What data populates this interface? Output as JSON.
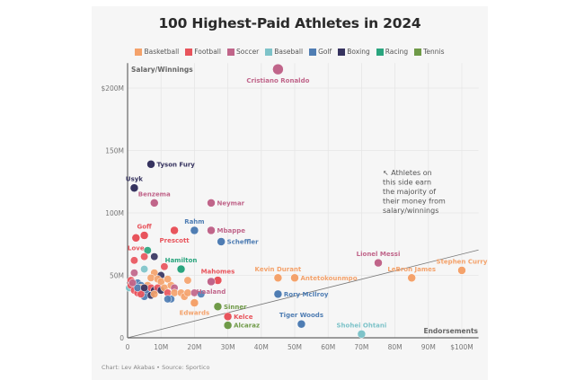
{
  "chart_data": {
    "type": "scatter",
    "title": "100 Highest-Paid Athletes in 2024",
    "xlabel": "Endorsements",
    "ylabel": "Salary/Winnings",
    "xlim": [
      0,
      105
    ],
    "ylim": [
      0,
      220
    ],
    "x_ticks": [
      {
        "value": 0,
        "label": "0"
      },
      {
        "value": 10,
        "label": "10M"
      },
      {
        "value": 20,
        "label": "20M"
      },
      {
        "value": 30,
        "label": "30M"
      },
      {
        "value": 40,
        "label": "40M"
      },
      {
        "value": 50,
        "label": "50M"
      },
      {
        "value": 60,
        "label": "60M"
      },
      {
        "value": 70,
        "label": "70M"
      },
      {
        "value": 80,
        "label": "80M"
      },
      {
        "value": 90,
        "label": "90M"
      },
      {
        "value": 100,
        "label": "$100M"
      }
    ],
    "y_ticks": [
      {
        "value": 0,
        "label": "0"
      },
      {
        "value": 50,
        "label": "50M"
      },
      {
        "value": 100,
        "label": "100M"
      },
      {
        "value": 150,
        "label": "150M"
      },
      {
        "value": 200,
        "label": "$200M"
      }
    ],
    "grid": true,
    "legend_position": "top-center",
    "categories": [
      {
        "name": "Basketball",
        "color": "#f4a26b"
      },
      {
        "name": "Football",
        "color": "#e8545c"
      },
      {
        "name": "Soccer",
        "color": "#c0658a"
      },
      {
        "name": "Baseball",
        "color": "#7ec3c9"
      },
      {
        "name": "Golf",
        "color": "#4f7db3"
      },
      {
        "name": "Boxing",
        "color": "#36335f"
      },
      {
        "name": "Racing",
        "color": "#2aa57e"
      },
      {
        "name": "Tennis",
        "color": "#6f9a48"
      }
    ],
    "diagonal_line": {
      "from": [
        0,
        0
      ],
      "to": [
        105,
        105
      ]
    },
    "annotation": "↖ Athletes on this side earn the majority of their money from salary/winnings",
    "labeled_points": [
      {
        "name": "Cristiano Ronaldo",
        "sport": "Soccer",
        "x": 45,
        "y": 215,
        "label_pos": "below"
      },
      {
        "name": "Tyson Fury",
        "sport": "Boxing",
        "x": 7,
        "y": 139,
        "label_pos": "right"
      },
      {
        "name": "Usyk",
        "sport": "Boxing",
        "x": 2,
        "y": 120,
        "label_pos": "above"
      },
      {
        "name": "Benzema",
        "sport": "Soccer",
        "x": 8,
        "y": 108,
        "label_pos": "above"
      },
      {
        "name": "Neymar",
        "sport": "Soccer",
        "x": 25,
        "y": 108,
        "label_pos": "right"
      },
      {
        "name": "Rahm",
        "sport": "Golf",
        "x": 20,
        "y": 86,
        "label_pos": "above"
      },
      {
        "name": "Mbappe",
        "sport": "Soccer",
        "x": 25,
        "y": 86,
        "label_pos": "right"
      },
      {
        "name": "Scheffler",
        "sport": "Golf",
        "x": 28,
        "y": 77,
        "label_pos": "right"
      },
      {
        "name": "Goff",
        "sport": "Football",
        "x": 5,
        "y": 82,
        "label_pos": "above"
      },
      {
        "name": "Love",
        "sport": "Football",
        "x": 2.5,
        "y": 80,
        "label_pos": "below"
      },
      {
        "name": "Prescott",
        "sport": "Football",
        "x": 14,
        "y": 86,
        "label_pos": "below"
      },
      {
        "name": "Hamilton",
        "sport": "Racing",
        "x": 16,
        "y": 55,
        "label_pos": "above"
      },
      {
        "name": "Mahomes",
        "sport": "Football",
        "x": 27,
        "y": 46,
        "label_pos": "above"
      },
      {
        "name": "Haaland",
        "sport": "Soccer",
        "x": 25,
        "y": 45,
        "label_pos": "below"
      },
      {
        "name": "Edwards",
        "sport": "Basketball",
        "x": 20,
        "y": 28,
        "label_pos": "below"
      },
      {
        "name": "Sinner",
        "sport": "Tennis",
        "x": 27,
        "y": 25,
        "label_pos": "right"
      },
      {
        "name": "Kelce",
        "sport": "Football",
        "x": 30,
        "y": 17,
        "label_pos": "right"
      },
      {
        "name": "Alcaraz",
        "sport": "Tennis",
        "x": 30,
        "y": 10,
        "label_pos": "right"
      },
      {
        "name": "Kevin Durant",
        "sport": "Basketball",
        "x": 45,
        "y": 48,
        "label_pos": "above"
      },
      {
        "name": "Antetokounmpo",
        "sport": "Basketball",
        "x": 50,
        "y": 48,
        "label_pos": "right"
      },
      {
        "name": "Rory McIlroy",
        "sport": "Golf",
        "x": 45,
        "y": 35,
        "label_pos": "right"
      },
      {
        "name": "Tiger Woods",
        "sport": "Golf",
        "x": 52,
        "y": 11,
        "label_pos": "above"
      },
      {
        "name": "Shohei Ohtani",
        "sport": "Baseball",
        "x": 70,
        "y": 3,
        "label_pos": "above"
      },
      {
        "name": "Lionel Messi",
        "sport": "Soccer",
        "x": 75,
        "y": 60,
        "label_pos": "above"
      },
      {
        "name": "LeBron James",
        "sport": "Basketball",
        "x": 85,
        "y": 48,
        "label_pos": "above"
      },
      {
        "name": "Stephen Curry",
        "sport": "Basketball",
        "x": 100,
        "y": 54,
        "label_pos": "above"
      }
    ],
    "unlabeled_points": [
      {
        "sport": "Racing",
        "x": 6,
        "y": 70
      },
      {
        "sport": "Football",
        "x": 5,
        "y": 65
      },
      {
        "sport": "Boxing",
        "x": 8,
        "y": 65
      },
      {
        "sport": "Football",
        "x": 2,
        "y": 62
      },
      {
        "sport": "Baseball",
        "x": 5,
        "y": 55
      },
      {
        "sport": "Football",
        "x": 11,
        "y": 57
      },
      {
        "sport": "Soccer",
        "x": 2,
        "y": 52
      },
      {
        "sport": "Basketball",
        "x": 8,
        "y": 52
      },
      {
        "sport": "Boxing",
        "x": 10,
        "y": 50
      },
      {
        "sport": "Basketball",
        "x": 7,
        "y": 48
      },
      {
        "sport": "Basketball",
        "x": 9,
        "y": 47
      },
      {
        "sport": "Basketball",
        "x": 10,
        "y": 45
      },
      {
        "sport": "Football",
        "x": 1,
        "y": 46
      },
      {
        "sport": "Baseball",
        "x": 0.5,
        "y": 40
      },
      {
        "sport": "Football",
        "x": 1,
        "y": 42
      },
      {
        "sport": "Golf",
        "x": 3,
        "y": 44
      },
      {
        "sport": "Golf",
        "x": 4,
        "y": 42
      },
      {
        "sport": "Football",
        "x": 2,
        "y": 38
      },
      {
        "sport": "Football",
        "x": 3,
        "y": 36
      },
      {
        "sport": "Basketball",
        "x": 4,
        "y": 40
      },
      {
        "sport": "Football",
        "x": 5,
        "y": 38
      },
      {
        "sport": "Golf",
        "x": 6,
        "y": 37
      },
      {
        "sport": "Basketball",
        "x": 6,
        "y": 42
      },
      {
        "sport": "Football",
        "x": 7,
        "y": 40
      },
      {
        "sport": "Boxing",
        "x": 8,
        "y": 38
      },
      {
        "sport": "Football",
        "x": 9,
        "y": 40
      },
      {
        "sport": "Boxing",
        "x": 10,
        "y": 38
      },
      {
        "sport": "Basketball",
        "x": 11,
        "y": 40
      },
      {
        "sport": "Golf",
        "x": 5,
        "y": 33
      },
      {
        "sport": "Boxing",
        "x": 7,
        "y": 34
      },
      {
        "sport": "Basketball",
        "x": 8,
        "y": 35
      },
      {
        "sport": "Football",
        "x": 12,
        "y": 36
      },
      {
        "sport": "Basketball",
        "x": 13,
        "y": 42
      },
      {
        "sport": "Soccer",
        "x": 14,
        "y": 40
      },
      {
        "sport": "Basketball",
        "x": 14,
        "y": 36
      },
      {
        "sport": "Golf",
        "x": 13,
        "y": 31
      },
      {
        "sport": "Golf",
        "x": 12,
        "y": 31
      },
      {
        "sport": "Basketball",
        "x": 16,
        "y": 36
      },
      {
        "sport": "Basketball",
        "x": 17,
        "y": 33
      },
      {
        "sport": "Basketball",
        "x": 18,
        "y": 36
      },
      {
        "sport": "Soccer",
        "x": 20,
        "y": 36
      },
      {
        "sport": "Golf",
        "x": 22,
        "y": 35
      },
      {
        "sport": "Basketball",
        "x": 18,
        "y": 46
      },
      {
        "sport": "Basketball",
        "x": 12,
        "y": 47
      },
      {
        "sport": "Football",
        "x": 4,
        "y": 35
      },
      {
        "sport": "Golf",
        "x": 3,
        "y": 40
      },
      {
        "sport": "Soccer",
        "x": 1.5,
        "y": 44
      },
      {
        "sport": "Boxing",
        "x": 5,
        "y": 40
      }
    ]
  },
  "footer": "Chart: Lev Akabas • Source: Sportico"
}
